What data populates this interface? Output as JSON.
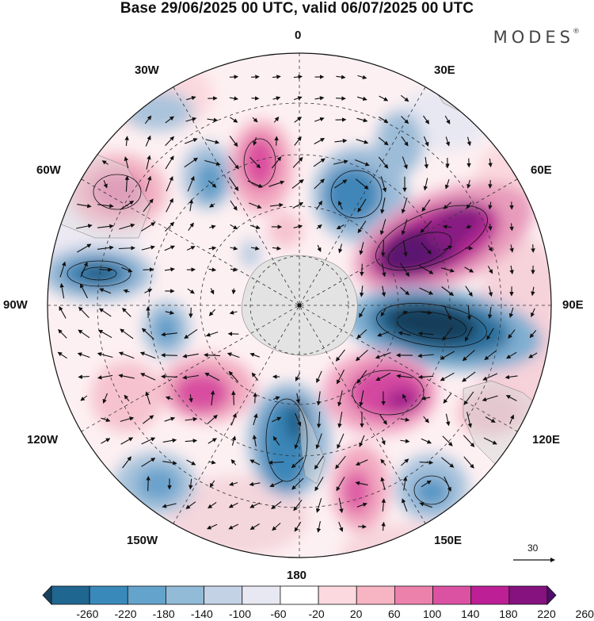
{
  "title": "Base 29/06/2025 00 UTC, valid 06/07/2025 00 UTC",
  "brand": "MODES",
  "brand_mark": "®",
  "longitude_labels": {
    "n": "0",
    "s": "180",
    "w": "90W",
    "e": "90E",
    "nw30": "30W",
    "ne30": "30E",
    "nw60": "60W",
    "ne60": "60E",
    "sw120": "120W",
    "se120": "120E",
    "sw150": "150W",
    "se150": "150E"
  },
  "vector_scale": {
    "label": "30"
  },
  "colorbar": {
    "labels": [
      "-260",
      "-220",
      "-180",
      "-140",
      "-100",
      "-60",
      "-20",
      "20",
      "60",
      "100",
      "140",
      "180",
      "220",
      "260"
    ],
    "colors": [
      "#17425e",
      "#1f6690",
      "#3a89bb",
      "#64a3cb",
      "#92bbd8",
      "#c4d2e6",
      "#e8e8f2",
      "#ffffff",
      "#fbd9de",
      "#f7b4c3",
      "#ec82ac",
      "#dc52a2",
      "#bd1f96",
      "#85127f",
      "#4e0e6a"
    ]
  },
  "anomaly_colors": {
    "strong_negative": "#17425e",
    "negative": "#3a89bb",
    "weak_negative": "#c4d2e6",
    "weak_positive": "#fbd9de",
    "positive": "#ec82ac",
    "strong_positive": "#4e0e6a",
    "antarctica": "#e2e2e2"
  }
}
